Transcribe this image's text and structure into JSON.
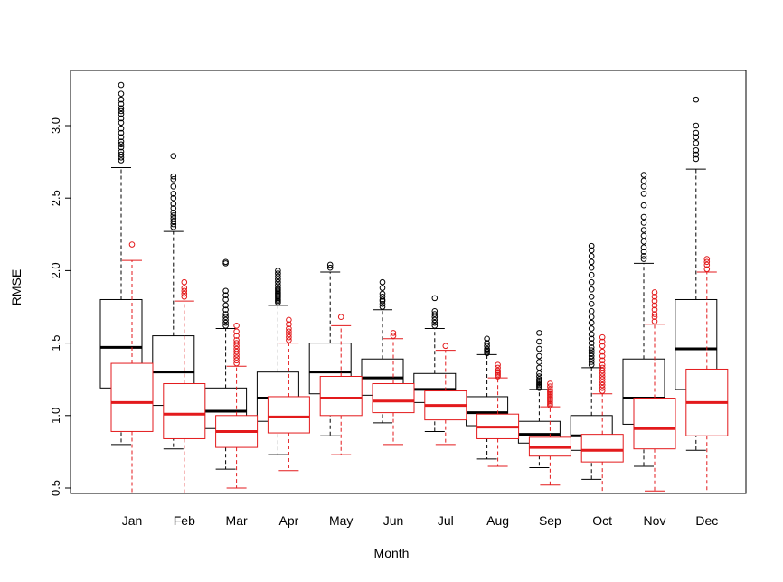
{
  "chart_data": {
    "type": "boxplot",
    "xlabel": "Month",
    "ylabel": "RMSE",
    "ylim": [
      0.45,
      3.37
    ],
    "yticks": [
      "0.5",
      "1.0",
      "1.5",
      "2.0",
      "2.5",
      "3.0"
    ],
    "categories": [
      "Jan",
      "Feb",
      "Mar",
      "Apr",
      "May",
      "Jun",
      "Jul",
      "Aug",
      "Sep",
      "Oct",
      "Nov",
      "Dec"
    ],
    "grid": false,
    "series": [
      {
        "color": "#000000",
        "boxes": [
          {
            "whisker_low": 0.8,
            "q1": 1.19,
            "median": 1.47,
            "q3": 1.8,
            "whisker_high": 2.71,
            "outliers": [
              2.76,
              2.78,
              2.8,
              2.82,
              2.85,
              2.87,
              2.89,
              2.92,
              2.95,
              2.98,
              3.02,
              3.05,
              3.08,
              3.1,
              3.12,
              3.15,
              3.18,
              3.22,
              3.28
            ]
          },
          {
            "whisker_low": 0.77,
            "q1": 1.07,
            "median": 1.3,
            "q3": 1.55,
            "whisker_high": 2.27,
            "outliers": [
              2.3,
              2.32,
              2.34,
              2.36,
              2.38,
              2.4,
              2.43,
              2.46,
              2.5,
              2.53,
              2.58,
              2.63,
              2.65,
              2.79
            ]
          },
          {
            "whisker_low": 0.63,
            "q1": 0.91,
            "median": 1.03,
            "q3": 1.19,
            "whisker_high": 1.6,
            "outliers": [
              1.62,
              1.64,
              1.66,
              1.68,
              1.7,
              1.73,
              1.76,
              1.8,
              1.83,
              1.86,
              2.05,
              2.06
            ]
          },
          {
            "whisker_low": 0.73,
            "q1": 0.96,
            "median": 1.12,
            "q3": 1.3,
            "whisker_high": 1.76,
            "outliers": [
              1.78,
              1.79,
              1.8,
              1.81,
              1.82,
              1.83,
              1.84,
              1.85,
              1.86,
              1.87,
              1.88,
              1.9,
              1.92,
              1.94,
              1.96,
              1.98,
              2.0
            ]
          },
          {
            "whisker_low": 0.86,
            "q1": 1.15,
            "median": 1.3,
            "q3": 1.5,
            "whisker_high": 1.99,
            "outliers": [
              2.02,
              2.04
            ]
          },
          {
            "whisker_low": 0.95,
            "q1": 1.14,
            "median": 1.26,
            "q3": 1.39,
            "whisker_high": 1.73,
            "outliers": [
              1.75,
              1.77,
              1.79,
              1.8,
              1.82,
              1.84,
              1.88,
              1.92
            ]
          },
          {
            "whisker_low": 0.89,
            "q1": 1.09,
            "median": 1.18,
            "q3": 1.29,
            "whisker_high": 1.6,
            "outliers": [
              1.62,
              1.64,
              1.66,
              1.68,
              1.7,
              1.72,
              1.81
            ]
          },
          {
            "whisker_low": 0.7,
            "q1": 0.93,
            "median": 1.02,
            "q3": 1.13,
            "whisker_high": 1.42,
            "outliers": [
              1.43,
              1.44,
              1.45,
              1.46,
              1.48,
              1.5,
              1.53
            ]
          },
          {
            "whisker_low": 0.64,
            "q1": 0.81,
            "median": 0.87,
            "q3": 0.96,
            "whisker_high": 1.18,
            "outliers": [
              1.19,
              1.2,
              1.21,
              1.22,
              1.23,
              1.24,
              1.25,
              1.27,
              1.29,
              1.33,
              1.37,
              1.41,
              1.46,
              1.51,
              1.57
            ]
          },
          {
            "whisker_low": 0.56,
            "q1": 0.76,
            "median": 0.86,
            "q3": 1.0,
            "whisker_high": 1.33,
            "outliers": [
              1.35,
              1.37,
              1.39,
              1.41,
              1.43,
              1.45,
              1.47,
              1.5,
              1.53,
              1.56,
              1.6,
              1.64,
              1.68,
              1.72,
              1.77,
              1.82,
              1.87,
              1.92,
              1.97,
              2.02,
              2.06,
              2.1,
              2.14,
              2.17
            ]
          },
          {
            "whisker_low": 0.65,
            "q1": 0.94,
            "median": 1.12,
            "q3": 1.39,
            "whisker_high": 2.05,
            "outliers": [
              2.08,
              2.1,
              2.13,
              2.16,
              2.2,
              2.24,
              2.28,
              2.33,
              2.37,
              2.45,
              2.53,
              2.58,
              2.62,
              2.66
            ]
          },
          {
            "whisker_low": 0.76,
            "q1": 1.18,
            "median": 1.46,
            "q3": 1.8,
            "whisker_high": 2.7,
            "outliers": [
              2.77,
              2.8,
              2.83,
              2.88,
              2.92,
              2.95,
              3.0,
              3.18
            ]
          }
        ]
      },
      {
        "color": "#e31a1c",
        "boxes": [
          {
            "whisker_low": 0.46,
            "q1": 0.89,
            "median": 1.09,
            "q3": 1.36,
            "whisker_high": 2.07,
            "outliers": [
              2.18
            ]
          },
          {
            "whisker_low": 0.43,
            "q1": 0.84,
            "median": 1.01,
            "q3": 1.22,
            "whisker_high": 1.79,
            "outliers": [
              1.82,
              1.84,
              1.86,
              1.88,
              1.92
            ]
          },
          {
            "whisker_low": 0.5,
            "q1": 0.78,
            "median": 0.89,
            "q3": 1.0,
            "whisker_high": 1.34,
            "outliers": [
              1.36,
              1.38,
              1.4,
              1.42,
              1.44,
              1.46,
              1.48,
              1.5,
              1.52,
              1.55,
              1.58,
              1.62
            ]
          },
          {
            "whisker_low": 0.62,
            "q1": 0.88,
            "median": 0.99,
            "q3": 1.13,
            "whisker_high": 1.5,
            "outliers": [
              1.52,
              1.54,
              1.56,
              1.58,
              1.6,
              1.63,
              1.66
            ]
          },
          {
            "whisker_low": 0.73,
            "q1": 1.0,
            "median": 1.12,
            "q3": 1.27,
            "whisker_high": 1.62,
            "outliers": [
              1.68
            ]
          },
          {
            "whisker_low": 0.8,
            "q1": 1.02,
            "median": 1.1,
            "q3": 1.22,
            "whisker_high": 1.53,
            "outliers": [
              1.55,
              1.57
            ]
          },
          {
            "whisker_low": 0.8,
            "q1": 0.97,
            "median": 1.07,
            "q3": 1.17,
            "whisker_high": 1.45,
            "outliers": [
              1.48
            ]
          },
          {
            "whisker_low": 0.65,
            "q1": 0.84,
            "median": 0.92,
            "q3": 1.01,
            "whisker_high": 1.26,
            "outliers": [
              1.27,
              1.28,
              1.29,
              1.3,
              1.31,
              1.33,
              1.35
            ]
          },
          {
            "whisker_low": 0.52,
            "q1": 0.72,
            "median": 0.78,
            "q3": 0.85,
            "whisker_high": 1.06,
            "outliers": [
              1.07,
              1.08,
              1.09,
              1.1,
              1.11,
              1.12,
              1.13,
              1.14,
              1.15,
              1.16,
              1.17,
              1.18,
              1.2,
              1.22
            ]
          },
          {
            "whisker_low": 0.43,
            "q1": 0.68,
            "median": 0.76,
            "q3": 0.87,
            "whisker_high": 1.15,
            "outliers": [
              1.17,
              1.19,
              1.21,
              1.23,
              1.25,
              1.27,
              1.29,
              1.31,
              1.33,
              1.35,
              1.38,
              1.41,
              1.44,
              1.48,
              1.51,
              1.54
            ]
          },
          {
            "whisker_low": 0.48,
            "q1": 0.77,
            "median": 0.91,
            "q3": 1.12,
            "whisker_high": 1.63,
            "outliers": [
              1.65,
              1.68,
              1.7,
              1.73,
              1.76,
              1.79,
              1.82,
              1.85
            ]
          },
          {
            "whisker_low": 0.43,
            "q1": 0.86,
            "median": 1.09,
            "q3": 1.32,
            "whisker_high": 1.99,
            "outliers": [
              2.01,
              2.04,
              2.06,
              2.08
            ]
          }
        ]
      }
    ]
  }
}
